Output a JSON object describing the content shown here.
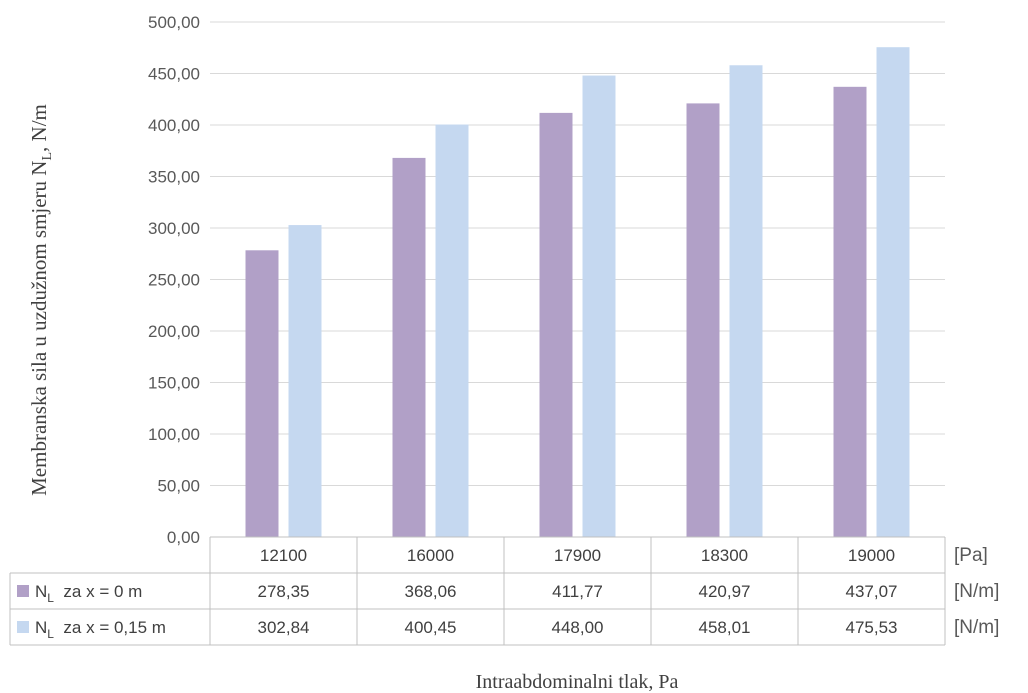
{
  "chart_data": {
    "type": "bar",
    "ylabel": "Membranska sila u uzdužnom smjeru N",
    "ylabel_sub": "L",
    "ylabel_unit": ", N/m",
    "xlabel": "Intraabdominalni tlak, Pa",
    "ylim": [
      0,
      500
    ],
    "yticks": [
      "0,00",
      "50,00",
      "100,00",
      "150,00",
      "200,00",
      "250,00",
      "300,00",
      "350,00",
      "400,00",
      "450,00",
      "500,00"
    ],
    "categories": [
      "12100",
      "16000",
      "17900",
      "18300",
      "19000"
    ],
    "category_unit": "[Pa]",
    "grid": true,
    "legend_placement": "data-table",
    "series": [
      {
        "name_main": "N",
        "name_sub": "L",
        "name_rest": "  za x = 0 m",
        "unit": "[N/m]",
        "color": "#b1a0c7",
        "values": [
          278.35,
          368.06,
          411.77,
          420.97,
          437.07
        ],
        "labels": [
          "278,35",
          "368,06",
          "411,77",
          "420,97",
          "437,07"
        ]
      },
      {
        "name_main": "N",
        "name_sub": "L",
        "name_rest": "  za x = 0,15 m",
        "unit": "[N/m]",
        "color": "#c5d8f0",
        "values": [
          302.84,
          400.45,
          448.0,
          458.01,
          475.53
        ],
        "labels": [
          "302,84",
          "400,45",
          "448,00",
          "458,01",
          "475,53"
        ]
      }
    ]
  }
}
